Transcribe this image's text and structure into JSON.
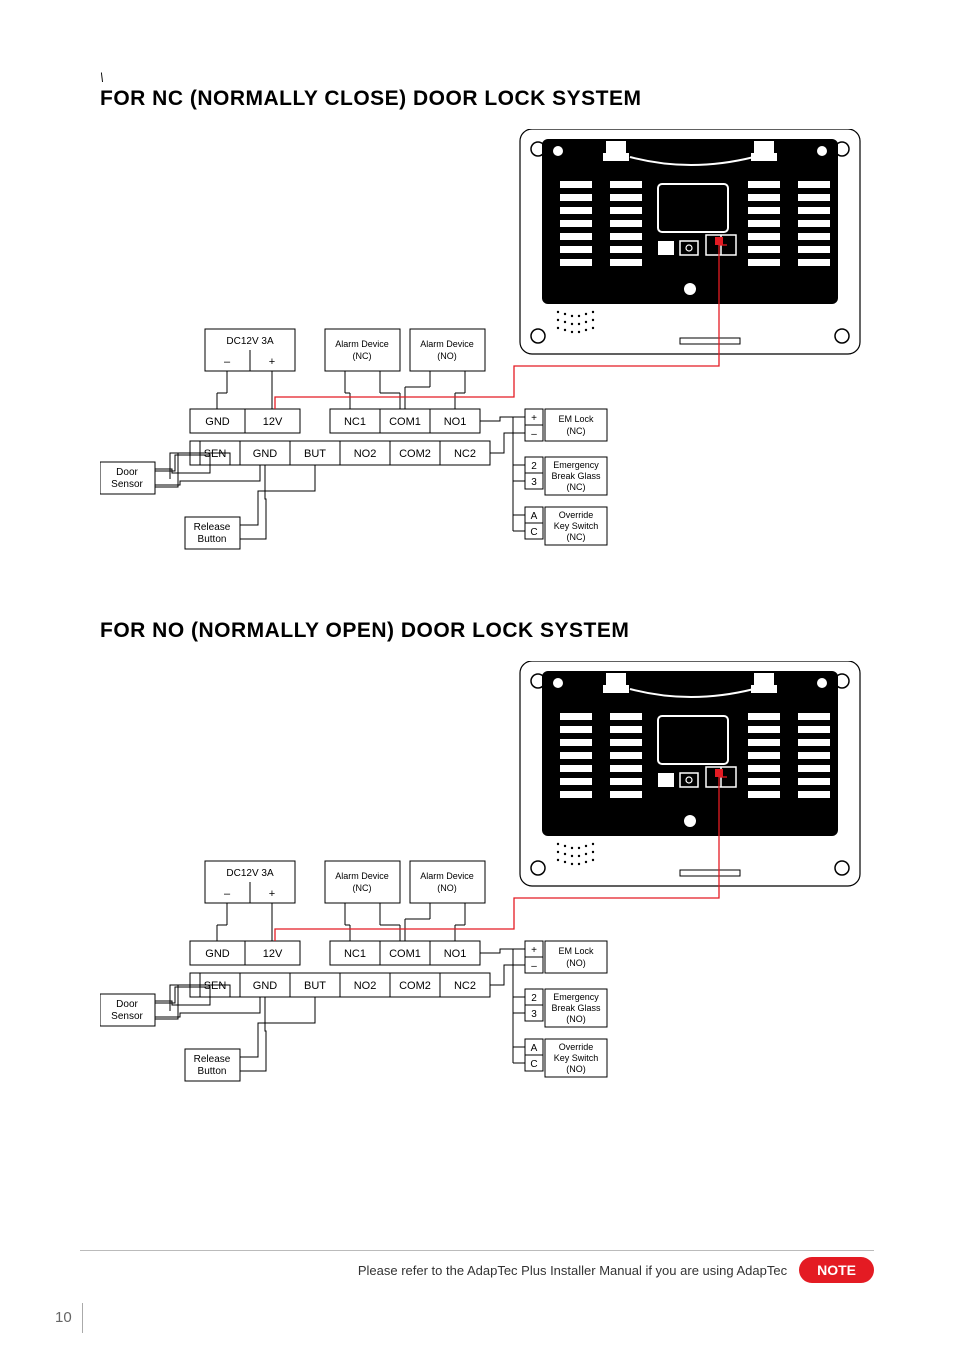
{
  "backslash": "\\",
  "heading_nc": "FOR NC (NORMALLY CLOSE) DOOR LOCK SYSTEM",
  "heading_no": "FOR NO (NORMALLY OPEN) DOOR LOCK SYSTEM",
  "power": {
    "title": "DC12V 3A",
    "minus": "–",
    "plus": "+"
  },
  "alarm_nc": {
    "line1": "Alarm Device",
    "line2": "(NC)"
  },
  "alarm_no": {
    "line1": "Alarm Device",
    "line2": "(NO)"
  },
  "terminals_row1": [
    "GND",
    "12V",
    "NC1",
    "COM1",
    "NO1"
  ],
  "terminals_row2": [
    "SEN",
    "GND",
    "BUT",
    "NO2",
    "COM2",
    "NC2"
  ],
  "door_sensor": {
    "line1": "Door",
    "line2": "Sensor"
  },
  "release_button": {
    "line1": "Release",
    "line2": "Button"
  },
  "em_lock_nc": {
    "sym_plus": "+",
    "sym_minus": "–",
    "line1": "EM Lock",
    "line2": "(NC)"
  },
  "em_lock_no": {
    "sym_plus": "+",
    "sym_minus": "–",
    "line1": "EM Lock",
    "line2": "(NO)"
  },
  "emergency_nc": {
    "sym1": "2",
    "sym2": "3",
    "line1": "Emergency",
    "line2": "Break Glass",
    "line3": "(NC)"
  },
  "emergency_no": {
    "sym1": "2",
    "sym2": "3",
    "line1": "Emergency",
    "line2": "Break Glass",
    "line3": "(NO)"
  },
  "override_nc": {
    "sym1": "A",
    "sym2": "C",
    "line1": "Override",
    "line2": "Key Switch",
    "line3": "(NC)"
  },
  "override_no": {
    "sym1": "A",
    "sym2": "C",
    "line1": "Override",
    "line2": "Key Switch",
    "line3": "(NO)"
  },
  "footer_text": "Please refer to the AdapTec Plus Installer Manual if you are using AdapTec",
  "note_badge": "NOTE",
  "page_num": "10",
  "colors": {
    "red": "#e41b23",
    "black": "#000000"
  }
}
